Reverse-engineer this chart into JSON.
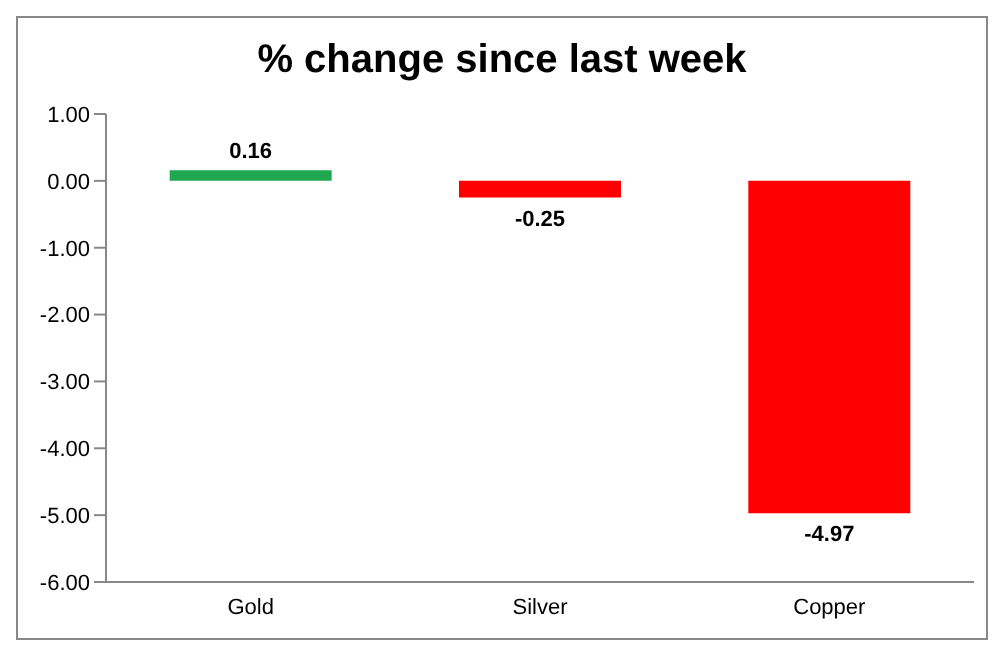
{
  "chart_data": {
    "type": "bar",
    "title": "% change since last week",
    "categories": [
      "Gold",
      "Silver",
      "Copper"
    ],
    "values": [
      0.16,
      -0.25,
      -4.97
    ],
    "colors": [
      "#1fa84f",
      "#ff0000",
      "#ff0000"
    ],
    "ylim": [
      -6,
      1
    ],
    "yticks": [
      {
        "value": -6,
        "label": "-6.00"
      },
      {
        "value": -5,
        "label": "-5.00"
      },
      {
        "value": -4,
        "label": "-4.00"
      },
      {
        "value": -3,
        "label": "-3.00"
      },
      {
        "value": -2,
        "label": "-2.00"
      },
      {
        "value": -1,
        "label": "-1.00"
      },
      {
        "value": 0,
        "label": "0.00"
      },
      {
        "value": 1,
        "label": "1.00"
      }
    ],
    "data_labels": true
  }
}
